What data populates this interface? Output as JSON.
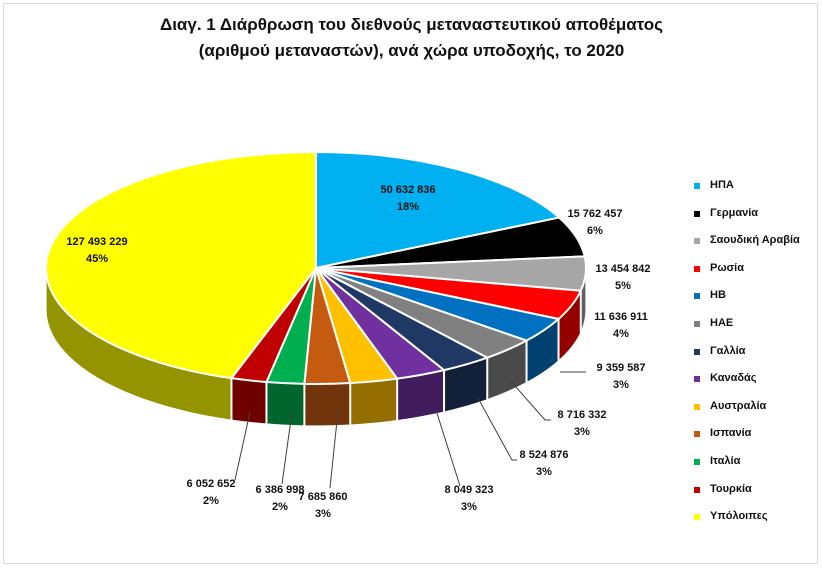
{
  "chart_data": {
    "type": "pie",
    "title_lines": [
      "Διαγ. 1 Διάρθρωση του διεθνούς μεταναστευτικού  αποθέματος",
      "(αριθμού μεταναστών), ανά χώρα υποδοχής, το 2020"
    ],
    "slices": [
      {
        "name": "ΗΠΑ",
        "value": 50632836,
        "value_label": "50 632 836",
        "percent_label": "18%",
        "color": "#00b0f0"
      },
      {
        "name": "Γερμανία",
        "value": 15762457,
        "value_label": "15 762 457",
        "percent_label": "6%",
        "color": "#000000"
      },
      {
        "name": "Σαουδική Αραβία",
        "value": 13454842,
        "value_label": "13 454 842",
        "percent_label": "5%",
        "color": "#a6a6a6"
      },
      {
        "name": "Ρωσία",
        "value": 11636911,
        "value_label": "11 636 911",
        "percent_label": "4%",
        "color": "#ff0000"
      },
      {
        "name": "ΗΒ",
        "value": 10000000,
        "value_label": "",
        "percent_label": "",
        "color": "#0070c0"
      },
      {
        "name": "ΗΑΕ",
        "value": 9359587,
        "value_label": "9 359 587",
        "percent_label": "3%",
        "color": "#808080"
      },
      {
        "name": "Γαλλία",
        "value": 8716332,
        "value_label": "8 716 332",
        "percent_label": "3%",
        "color": "#1f3864"
      },
      {
        "name": "Καναδάς",
        "value": 8524876,
        "value_label": "8 524 876",
        "percent_label": "3%",
        "color": "#7030a0"
      },
      {
        "name": "Αυστραλία",
        "value": 8049323,
        "value_label": "8 049 323",
        "percent_label": "3%",
        "color": "#ffc000"
      },
      {
        "name": "Ισπανία",
        "value": 7685860,
        "value_label": "7 685 860",
        "percent_label": "3%",
        "color": "#c55a11"
      },
      {
        "name": "Ιταλία",
        "value": 6386998,
        "value_label": "6 386 998",
        "percent_label": "2%",
        "color": "#00b050"
      },
      {
        "name": "Τουρκία",
        "value": 6052652,
        "value_label": "6 052 652",
        "percent_label": "2%",
        "color": "#c00000"
      },
      {
        "name": "Υπόλοιπες",
        "value": 127493229,
        "value_label": "127 493 229",
        "percent_label": "45%",
        "color": "#ffff00"
      }
    ],
    "legend_position": "right",
    "style": "3d-exploded-pie"
  }
}
